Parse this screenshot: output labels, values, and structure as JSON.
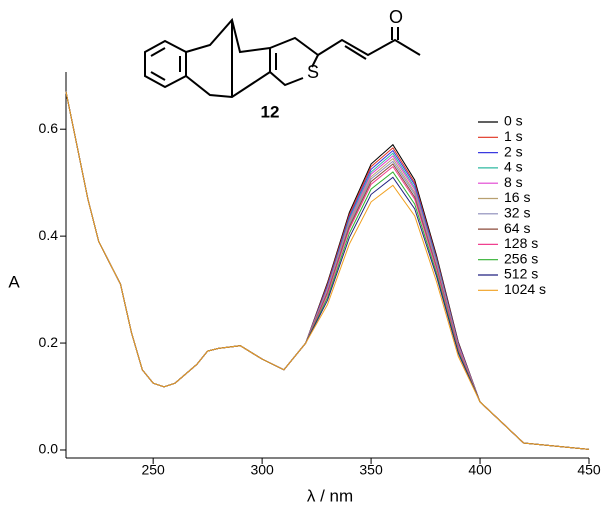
{
  "structure": {
    "compound_label": "12",
    "atoms": [
      "O",
      "S"
    ]
  },
  "chart_data": {
    "type": "line",
    "xlabel": "λ / nm",
    "ylabel": "A",
    "xlim": [
      210,
      450
    ],
    "ylim": [
      -0.015,
      0.707
    ],
    "xticks": [
      250,
      300,
      350,
      400,
      450
    ],
    "yticks": [
      {
        "value": 0,
        "label": "0.0"
      },
      0.2,
      0.4,
      0.6
    ],
    "legend": "upper right",
    "x": [
      210,
      215,
      220,
      225,
      230,
      235,
      240,
      245,
      250,
      255,
      260,
      270,
      275,
      280,
      290,
      300,
      310,
      320,
      330,
      340,
      350,
      360,
      370,
      380,
      390,
      400,
      420,
      450
    ],
    "series": [
      {
        "name": "0 s",
        "color": "#000000",
        "values": [
          0.67,
          0.57,
          0.47,
          0.39,
          0.35,
          0.31,
          0.22,
          0.15,
          0.125,
          0.118,
          0.125,
          0.16,
          0.185,
          0.19,
          0.195,
          0.17,
          0.15,
          0.2,
          0.313,
          0.444,
          0.535,
          0.571,
          0.505,
          0.364,
          0.202,
          0.09,
          0.013,
          0.001
        ]
      },
      {
        "name": "1 s",
        "color": "#e0301e",
        "values": [
          0.67,
          0.57,
          0.47,
          0.39,
          0.35,
          0.31,
          0.22,
          0.15,
          0.125,
          0.118,
          0.125,
          0.16,
          0.185,
          0.19,
          0.195,
          0.17,
          0.15,
          0.2,
          0.31,
          0.44,
          0.53,
          0.565,
          0.5,
          0.36,
          0.2,
          0.09,
          0.013,
          0.001
        ]
      },
      {
        "name": "2 s",
        "color": "#3a3ae0",
        "values": [
          0.67,
          0.57,
          0.47,
          0.39,
          0.35,
          0.31,
          0.22,
          0.15,
          0.125,
          0.118,
          0.125,
          0.16,
          0.185,
          0.19,
          0.195,
          0.17,
          0.15,
          0.2,
          0.307,
          0.436,
          0.525,
          0.56,
          0.496,
          0.357,
          0.198,
          0.09,
          0.013,
          0.001
        ]
      },
      {
        "name": "4 s",
        "color": "#2fb8a0",
        "values": [
          0.67,
          0.57,
          0.47,
          0.39,
          0.35,
          0.31,
          0.22,
          0.15,
          0.125,
          0.118,
          0.125,
          0.16,
          0.185,
          0.19,
          0.195,
          0.17,
          0.15,
          0.2,
          0.304,
          0.432,
          0.52,
          0.555,
          0.491,
          0.354,
          0.196,
          0.09,
          0.013,
          0.001
        ]
      },
      {
        "name": "8 s",
        "color": "#e040d0",
        "values": [
          0.67,
          0.57,
          0.47,
          0.39,
          0.35,
          0.31,
          0.22,
          0.15,
          0.125,
          0.118,
          0.125,
          0.16,
          0.185,
          0.19,
          0.195,
          0.17,
          0.15,
          0.2,
          0.302,
          0.428,
          0.516,
          0.55,
          0.487,
          0.35,
          0.195,
          0.09,
          0.013,
          0.001
        ]
      },
      {
        "name": "16 s",
        "color": "#b8a070",
        "values": [
          0.67,
          0.57,
          0.47,
          0.39,
          0.35,
          0.31,
          0.22,
          0.15,
          0.125,
          0.118,
          0.125,
          0.16,
          0.185,
          0.19,
          0.195,
          0.17,
          0.15,
          0.2,
          0.299,
          0.425,
          0.511,
          0.545,
          0.482,
          0.347,
          0.193,
          0.09,
          0.013,
          0.001
        ]
      },
      {
        "name": "32 s",
        "color": "#8a8ab8",
        "values": [
          0.67,
          0.57,
          0.47,
          0.39,
          0.35,
          0.31,
          0.22,
          0.15,
          0.125,
          0.118,
          0.125,
          0.16,
          0.185,
          0.19,
          0.195,
          0.17,
          0.15,
          0.2,
          0.296,
          0.421,
          0.507,
          0.54,
          0.478,
          0.344,
          0.191,
          0.09,
          0.013,
          0.001
        ]
      },
      {
        "name": "64 s",
        "color": "#8b4a3a",
        "values": [
          0.67,
          0.57,
          0.47,
          0.39,
          0.35,
          0.31,
          0.22,
          0.15,
          0.125,
          0.118,
          0.125,
          0.16,
          0.185,
          0.19,
          0.195,
          0.17,
          0.15,
          0.2,
          0.294,
          0.417,
          0.502,
          0.535,
          0.473,
          0.341,
          0.189,
          0.09,
          0.013,
          0.001
        ]
      },
      {
        "name": "128 s",
        "color": "#f04090",
        "values": [
          0.67,
          0.57,
          0.47,
          0.39,
          0.35,
          0.31,
          0.22,
          0.15,
          0.125,
          0.118,
          0.125,
          0.16,
          0.185,
          0.19,
          0.195,
          0.17,
          0.15,
          0.2,
          0.291,
          0.413,
          0.497,
          0.53,
          0.469,
          0.338,
          0.188,
          0.09,
          0.013,
          0.001
        ]
      },
      {
        "name": "256 s",
        "color": "#30b030",
        "values": [
          0.67,
          0.57,
          0.47,
          0.39,
          0.35,
          0.31,
          0.22,
          0.15,
          0.125,
          0.118,
          0.125,
          0.16,
          0.185,
          0.19,
          0.195,
          0.17,
          0.15,
          0.2,
          0.285,
          0.405,
          0.488,
          0.52,
          0.46,
          0.331,
          0.184,
          0.09,
          0.013,
          0.001
        ]
      },
      {
        "name": "512 s",
        "color": "#202080",
        "values": [
          0.67,
          0.57,
          0.47,
          0.39,
          0.35,
          0.31,
          0.22,
          0.15,
          0.125,
          0.118,
          0.125,
          0.16,
          0.185,
          0.19,
          0.195,
          0.17,
          0.15,
          0.2,
          0.28,
          0.397,
          0.478,
          0.51,
          0.451,
          0.325,
          0.181,
          0.09,
          0.013,
          0.001
        ]
      },
      {
        "name": "1024 s",
        "color": "#f0a020",
        "values": [
          0.67,
          0.57,
          0.47,
          0.39,
          0.35,
          0.31,
          0.22,
          0.15,
          0.125,
          0.118,
          0.125,
          0.16,
          0.185,
          0.19,
          0.195,
          0.17,
          0.15,
          0.2,
          0.272,
          0.385,
          0.464,
          0.495,
          0.438,
          0.315,
          0.175,
          0.09,
          0.013,
          0.001
        ]
      }
    ]
  }
}
